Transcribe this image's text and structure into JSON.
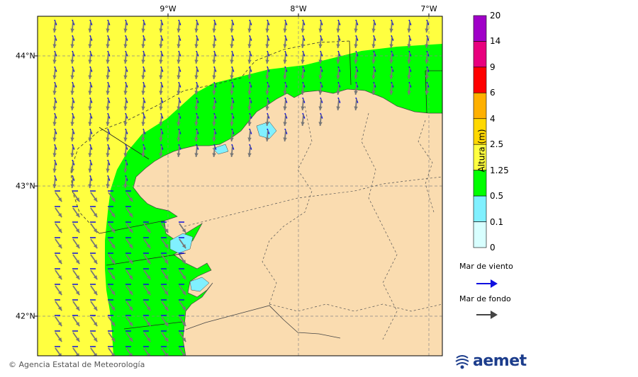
{
  "map": {
    "lon_labels": [
      "9°W",
      "8°W",
      "7°W"
    ],
    "lat_labels": [
      "44°N",
      "43°N",
      "42°N"
    ]
  },
  "colorbar": {
    "title": "Altura (m)",
    "levels": [
      {
        "label": "20",
        "color": "#a000c8"
      },
      {
        "label": "14",
        "color": "#e8007e"
      },
      {
        "label": "9",
        "color": "#ff0000"
      },
      {
        "label": "6",
        "color": "#ff7e00"
      },
      {
        "label": "4",
        "color": "#ffb000"
      },
      {
        "label": "2.5",
        "color": "#ffe000"
      },
      {
        "label": "1.25",
        "color": "#ffff40"
      },
      {
        "label": "0.5",
        "color": "#00ff00"
      },
      {
        "label": "0.1",
        "color": "#80f0ff"
      },
      {
        "label": "0",
        "color": "#d8ffff"
      }
    ],
    "bands": [
      {
        "from": "14",
        "to": "20",
        "color": "#a000c8"
      },
      {
        "from": "9",
        "to": "14",
        "color": "#e8007e"
      },
      {
        "from": "6",
        "to": "9",
        "color": "#ff0000"
      },
      {
        "from": "4",
        "to": "6",
        "color": "#ffb000"
      },
      {
        "from": "2.5",
        "to": "4",
        "color": "#ffd800"
      },
      {
        "from": "1.25",
        "to": "2.5",
        "color": "#ffff40"
      },
      {
        "from": "0.5",
        "to": "1.25",
        "color": "#00ff00"
      },
      {
        "from": "0.1",
        "to": "0.5",
        "color": "#80f0ff"
      },
      {
        "from": "0",
        "to": "0.1",
        "color": "#d8ffff"
      }
    ]
  },
  "legend": {
    "wind_sea": {
      "label": "Mar de viento",
      "color": "#1010e0"
    },
    "swell": {
      "label": "Mar de fondo",
      "color": "#444444"
    }
  },
  "colors": {
    "sea_high": "#ffff40",
    "sea_mid": "#00ff00",
    "sea_low": "#80f0ff",
    "land": "#fadcb0",
    "wind_arrow": "#1010e0",
    "swell_arrow": "#777777"
  },
  "footer": {
    "credit": "© Agencia Estatal de Meteorología",
    "logo": "aemet"
  }
}
